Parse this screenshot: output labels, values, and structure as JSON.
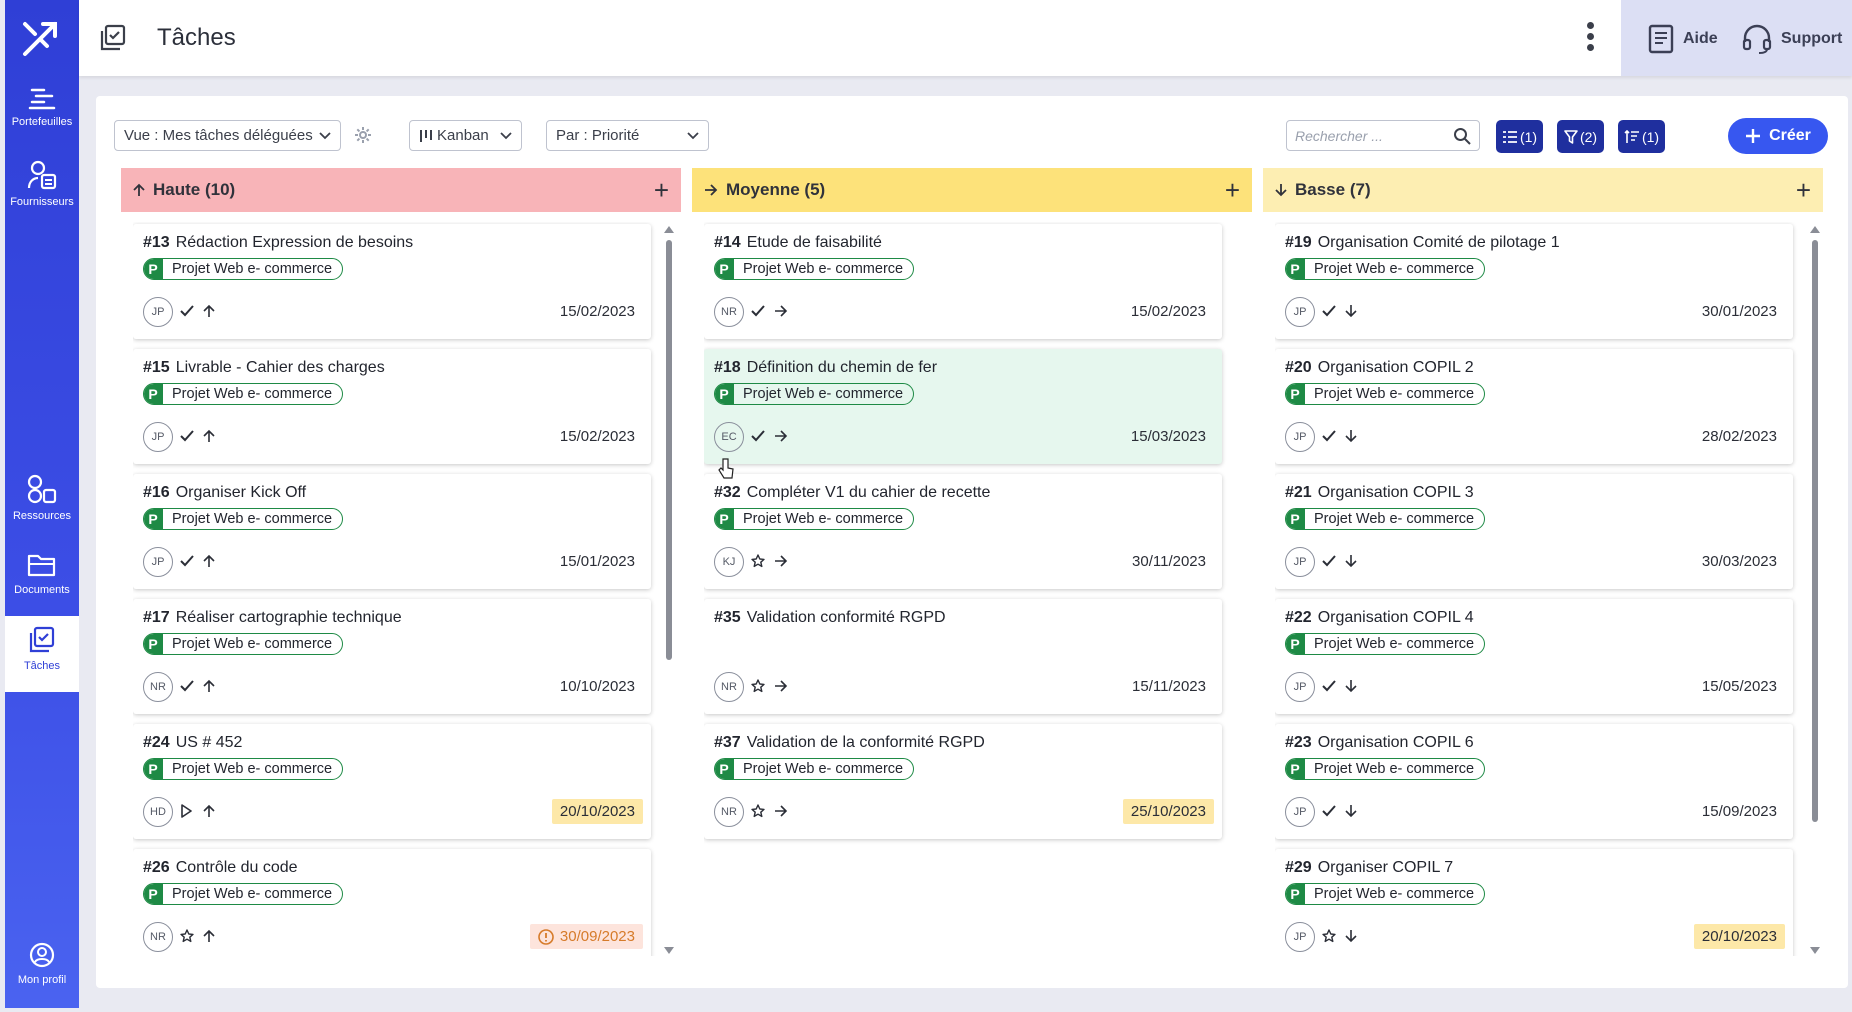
{
  "sidebar": {
    "items": [
      {
        "label": "Portefeuilles",
        "icon": "portfolio-icon"
      },
      {
        "label": "Fournisseurs",
        "icon": "suppliers-icon"
      },
      {
        "label": "Ressources",
        "icon": "resources-icon"
      },
      {
        "label": "Documents",
        "icon": "folder-icon"
      },
      {
        "label": "Tâches",
        "icon": "tasks-icon"
      },
      {
        "label": "Mon profil",
        "icon": "profile-icon"
      }
    ]
  },
  "header": {
    "title": "Tâches",
    "help_label": "Aide",
    "support_label": "Support"
  },
  "toolbar": {
    "view_select": "Vue : Mes tâches déléguées",
    "display_select": "Kanban",
    "group_select": "Par : Priorité",
    "search_placeholder": "Rechercher ...",
    "columns_btn": "(1)",
    "filter_btn": "(2)",
    "sort_btn": "(1)",
    "create_label": "Créer"
  },
  "colors": {
    "haute": "#f8b4b8",
    "moyenne": "#fde27a",
    "basse": "#fdeeb2",
    "project_tag": "#1e8a45",
    "accent": "#3757f0"
  },
  "columns": [
    {
      "name": "Haute",
      "count": "(10)",
      "cards": [
        {
          "id": "#13",
          "title": "Rédaction Expression de besoins",
          "project": "Projet Web e- commerce",
          "avatar": "JP",
          "status": "check",
          "priority": "up",
          "date": "15/02/2023",
          "date_style": "normal"
        },
        {
          "id": "#15",
          "title": "Livrable - Cahier des charges",
          "project": "Projet Web e- commerce",
          "avatar": "JP",
          "status": "check",
          "priority": "up",
          "date": "15/02/2023",
          "date_style": "normal"
        },
        {
          "id": "#16",
          "title": "Organiser Kick Off",
          "project": "Projet Web e- commerce",
          "avatar": "JP",
          "status": "check",
          "priority": "up",
          "date": "15/01/2023",
          "date_style": "normal"
        },
        {
          "id": "#17",
          "title": "Réaliser cartographie technique",
          "project": "Projet Web e- commerce",
          "avatar": "NR",
          "status": "check",
          "priority": "up",
          "date": "10/10/2023",
          "date_style": "normal"
        },
        {
          "id": "#24",
          "title": "US # 452",
          "project": "Projet Web e- commerce",
          "avatar": "HD",
          "status": "play",
          "priority": "up",
          "date": "20/10/2023",
          "date_style": "due"
        },
        {
          "id": "#26",
          "title": "Contrôle du code",
          "project": "Projet Web e- commerce",
          "avatar": "NR",
          "status": "star",
          "priority": "up",
          "date": "30/09/2023",
          "date_style": "late"
        }
      ]
    },
    {
      "name": "Moyenne",
      "count": "(5)",
      "cards": [
        {
          "id": "#14",
          "title": "Etude de faisabilité",
          "project": "Projet Web e- commerce",
          "avatar": "NR",
          "status": "check",
          "priority": "right",
          "date": "15/02/2023",
          "date_style": "normal"
        },
        {
          "id": "#18",
          "title": "Définition du chemin de fer",
          "project": "Projet Web e- commerce",
          "avatar": "EC",
          "status": "check",
          "priority": "right",
          "date": "15/03/2023",
          "date_style": "normal",
          "hover": true
        },
        {
          "id": "#32",
          "title": "Compléter V1 du cahier de recette",
          "project": "Projet Web e- commerce",
          "avatar": "KJ",
          "status": "star",
          "priority": "right",
          "date": "30/11/2023",
          "date_style": "normal"
        },
        {
          "id": "#35",
          "title": "Validation conformité RGPD",
          "project": "",
          "avatar": "NR",
          "status": "star",
          "priority": "right",
          "date": "15/11/2023",
          "date_style": "normal"
        },
        {
          "id": "#37",
          "title": "Validation de la conformité RGPD",
          "project": "Projet Web e- commerce",
          "avatar": "NR",
          "status": "star",
          "priority": "right",
          "date": "25/10/2023",
          "date_style": "due"
        }
      ]
    },
    {
      "name": "Basse",
      "count": "(7)",
      "cards": [
        {
          "id": "#19",
          "title": "Organisation Comité de pilotage 1",
          "project": "Projet Web e- commerce",
          "avatar": "JP",
          "status": "check",
          "priority": "down",
          "date": "30/01/2023",
          "date_style": "normal"
        },
        {
          "id": "#20",
          "title": "Organisation COPIL 2",
          "project": "Projet Web e- commerce",
          "avatar": "JP",
          "status": "check",
          "priority": "down",
          "date": "28/02/2023",
          "date_style": "normal"
        },
        {
          "id": "#21",
          "title": "Organisation COPIL 3",
          "project": "Projet Web e- commerce",
          "avatar": "JP",
          "status": "check",
          "priority": "down",
          "date": "30/03/2023",
          "date_style": "normal"
        },
        {
          "id": "#22",
          "title": "Organisation COPIL 4",
          "project": "Projet Web e- commerce",
          "avatar": "JP",
          "status": "check",
          "priority": "down",
          "date": "15/05/2023",
          "date_style": "normal"
        },
        {
          "id": "#23",
          "title": "Organisation COPIL 6",
          "project": "Projet Web e- commerce",
          "avatar": "JP",
          "status": "check",
          "priority": "down",
          "date": "15/09/2023",
          "date_style": "normal"
        },
        {
          "id": "#29",
          "title": "Organiser COPIL 7",
          "project": "Projet Web e- commerce",
          "avatar": "JP",
          "status": "star",
          "priority": "down",
          "date": "20/10/2023",
          "date_style": "due"
        }
      ]
    }
  ]
}
